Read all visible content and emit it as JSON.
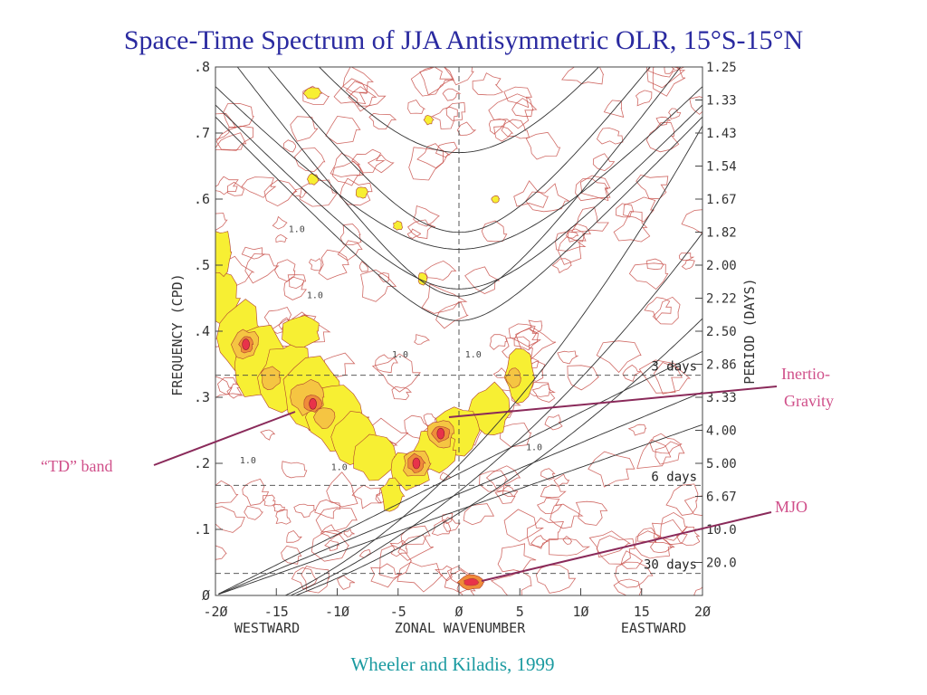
{
  "title": "Space-Time Spectrum of JJA Antisymmetric OLR, 15°S-15°N",
  "citation": "Wheeler and Kiladis, 1999",
  "colors": {
    "title": "#2a2aa0",
    "citation": "#1a9aa0",
    "annotation": "#d0508a",
    "arrow": "#8a2a5a",
    "contour": "#c8504a",
    "level1": "#f7ef33",
    "level2": "#f5c542",
    "level3": "#ef8c3a",
    "level4": "#e8334a",
    "dispersion": "#333333"
  },
  "annotations": {
    "td_band": "“TD” band",
    "inertio_gravity_1": "Inertio-",
    "inertio_gravity_2": "Gravity",
    "mjo": "MJO"
  },
  "chart_data": {
    "type": "heatmap",
    "xlabel": "ZONAL WAVENUMBER",
    "xlabel_left": "WESTWARD",
    "xlabel_right": "EASTWARD",
    "ylabel": "FREQUENCY (CPD)",
    "ylabel_right": "PERIOD (DAYS)",
    "xlim": [
      -20,
      20
    ],
    "ylim": [
      0,
      0.8
    ],
    "x_ticks": [
      {
        "value": -20,
        "label": "-2Ø"
      },
      {
        "value": -15,
        "label": "-15"
      },
      {
        "value": -10,
        "label": "-1Ø"
      },
      {
        "value": -5,
        "label": "-5"
      },
      {
        "value": 0,
        "label": "Ø"
      },
      {
        "value": 5,
        "label": "5"
      },
      {
        "value": 10,
        "label": "1Ø"
      },
      {
        "value": 15,
        "label": "15"
      },
      {
        "value": 20,
        "label": "2Ø"
      }
    ],
    "y_ticks": [
      {
        "value": 0,
        "label": "Ø"
      },
      {
        "value": 0.1,
        "label": ".1"
      },
      {
        "value": 0.2,
        "label": ".2"
      },
      {
        "value": 0.3,
        "label": ".3"
      },
      {
        "value": 0.4,
        "label": ".4"
      },
      {
        "value": 0.5,
        "label": ".5"
      },
      {
        "value": 0.6,
        "label": ".6"
      },
      {
        "value": 0.7,
        "label": ".7"
      },
      {
        "value": 0.8,
        "label": ".8"
      }
    ],
    "period_ticks": [
      {
        "freq": 0.8,
        "label": "1.25"
      },
      {
        "freq": 0.75,
        "label": "1.33"
      },
      {
        "freq": 0.7,
        "label": "1.43"
      },
      {
        "freq": 0.65,
        "label": "1.54"
      },
      {
        "freq": 0.6,
        "label": "1.67"
      },
      {
        "freq": 0.55,
        "label": "1.82"
      },
      {
        "freq": 0.5,
        "label": "2.00"
      },
      {
        "freq": 0.45,
        "label": "2.22"
      },
      {
        "freq": 0.4,
        "label": "2.50"
      },
      {
        "freq": 0.35,
        "label": "2.86"
      },
      {
        "freq": 0.3,
        "label": "3.33"
      },
      {
        "freq": 0.25,
        "label": "4.00"
      },
      {
        "freq": 0.2,
        "label": "5.00"
      },
      {
        "freq": 0.15,
        "label": "6.67"
      },
      {
        "freq": 0.1,
        "label": "10.0"
      },
      {
        "freq": 0.05,
        "label": "20.0"
      }
    ],
    "reference_periods": [
      {
        "freq": 0.3333,
        "label": "3 days"
      },
      {
        "freq": 0.1667,
        "label": "6 days"
      },
      {
        "freq": 0.0333,
        "label": "30 days"
      }
    ],
    "peaks": [
      {
        "name": "td_band",
        "x": -12,
        "y": 0.29
      },
      {
        "name": "td_band",
        "x": -17.5,
        "y": 0.38
      },
      {
        "name": "mrg_ig",
        "x": -1.5,
        "y": 0.245
      },
      {
        "name": "mrg_ig",
        "x": -3.5,
        "y": 0.2
      },
      {
        "name": "mjo",
        "x": 1,
        "y": 0.02
      }
    ],
    "contour_labels": [
      {
        "x": -18,
        "y": 0.2,
        "label": "1.0"
      },
      {
        "x": -5.5,
        "y": 0.36,
        "label": "1.0"
      },
      {
        "x": -10.5,
        "y": 0.19,
        "label": "1.0"
      },
      {
        "x": 5.5,
        "y": 0.22,
        "label": "1.0"
      },
      {
        "x": -12.5,
        "y": 0.45,
        "label": "1.0"
      },
      {
        "x": -14,
        "y": 0.55,
        "label": "1.0"
      },
      {
        "x": 0.5,
        "y": 0.36,
        "label": "1.0"
      }
    ]
  }
}
